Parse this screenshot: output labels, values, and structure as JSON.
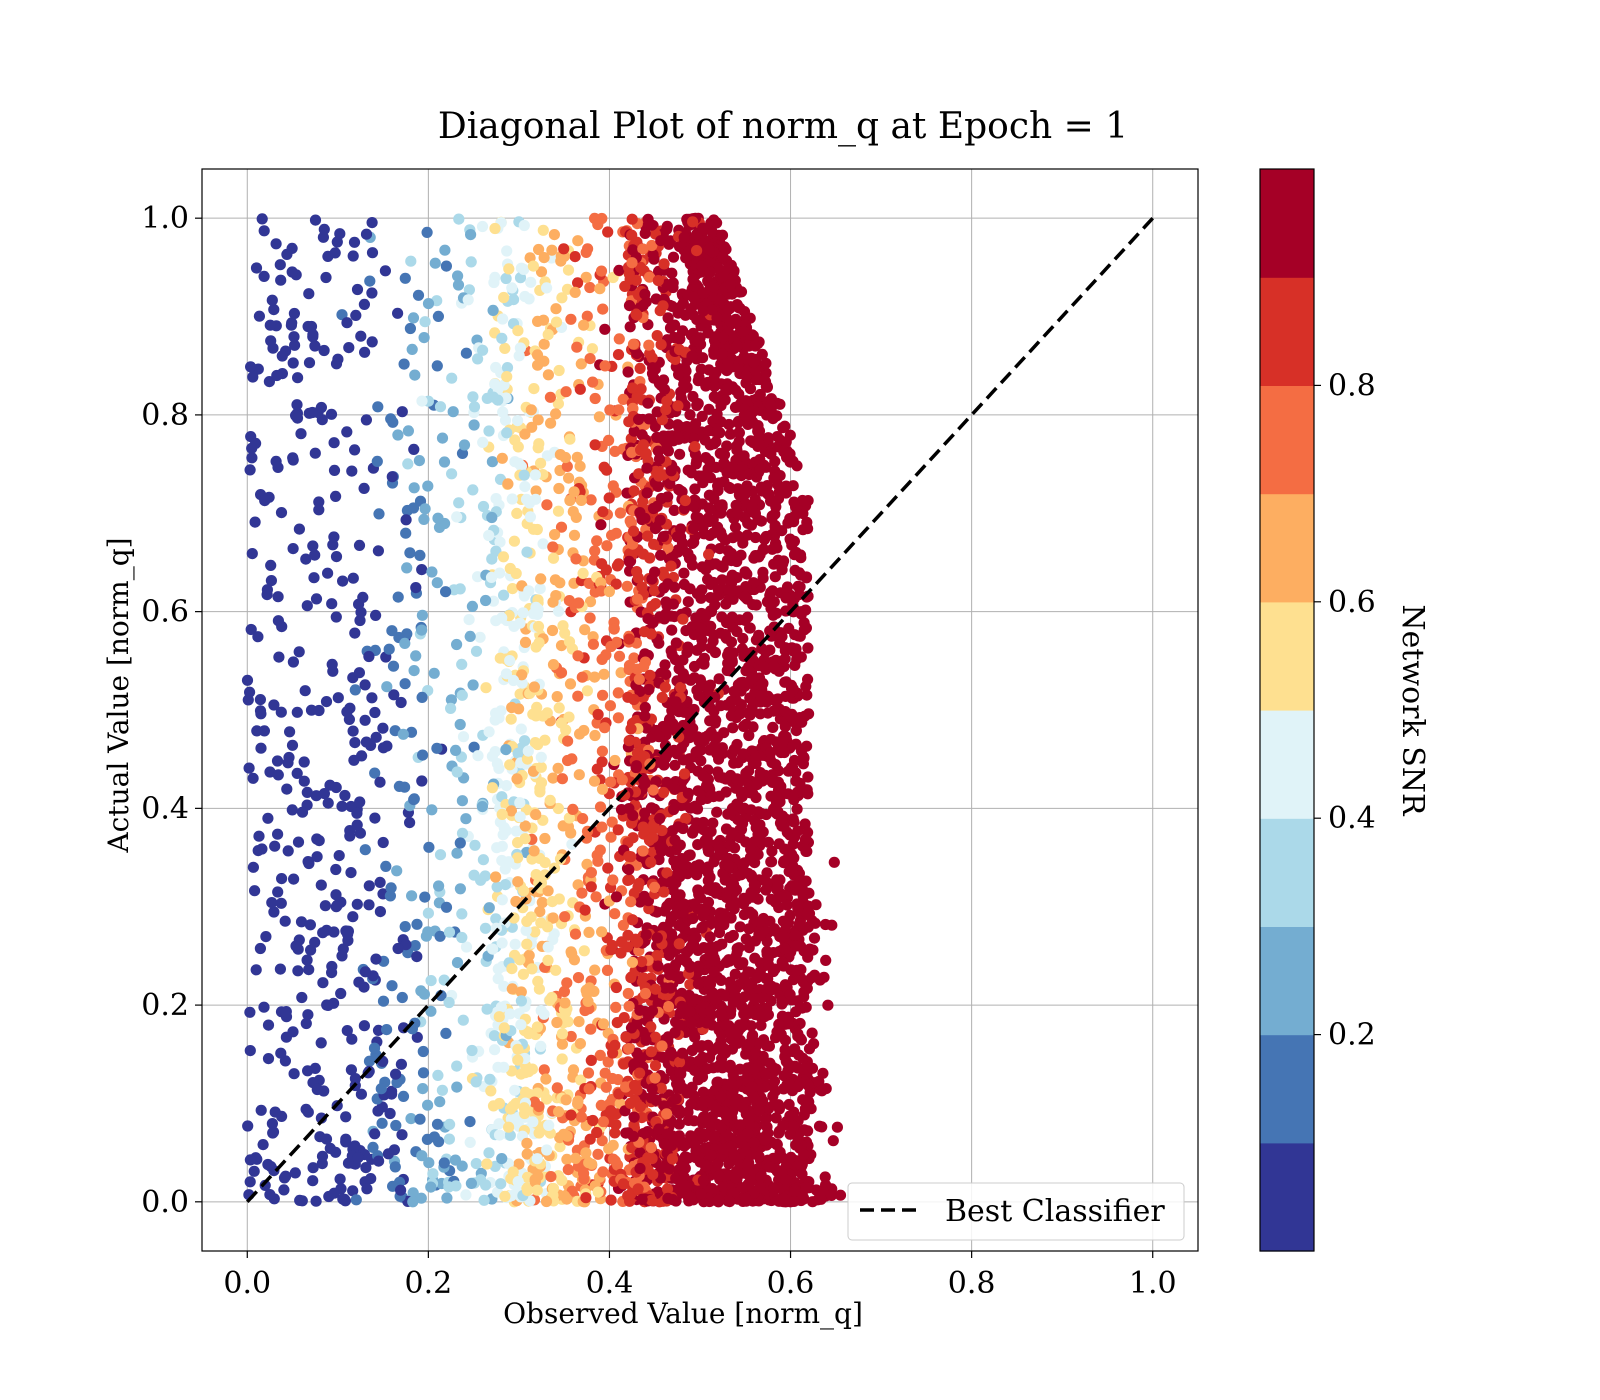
{
  "chart_data": {
    "type": "scatter",
    "title": "Diagonal Plot of norm_q at Epoch = 1",
    "xlabel": "Observed Value [norm_q]",
    "ylabel": "Actual Value [norm_q]",
    "xlim": [
      -0.05,
      1.05
    ],
    "ylim": [
      -0.05,
      1.05
    ],
    "x_ticks": [
      "0.0",
      "0.2",
      "0.4",
      "0.6",
      "0.8",
      "1.0"
    ],
    "y_ticks": [
      "0.0",
      "0.2",
      "0.4",
      "0.6",
      "0.8",
      "1.0"
    ],
    "grid": true,
    "legend": {
      "position": "lower-right",
      "entries": [
        "Best Classifier"
      ]
    },
    "series": [
      {
        "name": "Best Classifier",
        "type": "line",
        "style": "dashed",
        "color": "#000000",
        "x": [
          0.0,
          1.0
        ],
        "y": [
          0.0,
          1.0
        ]
      }
    ],
    "scatter_summary": {
      "color_by": "Network SNR",
      "approx_points": 30000,
      "x_range_observed": [
        0.0,
        0.66
      ],
      "y_range_observed": [
        0.0,
        1.0
      ]
    },
    "colorbar": {
      "label": "Network SNR",
      "range": [
        0.0,
        1.0
      ],
      "ticks": [
        "0.2",
        "0.4",
        "0.6",
        "0.8"
      ],
      "tick_values": [
        0.2,
        0.4,
        0.6,
        0.8
      ],
      "bands": [
        "#313695",
        "#4575b4",
        "#74add1",
        "#abd9e9",
        "#e0f3f8",
        "#fee090",
        "#fdae61",
        "#f46d43",
        "#d73027",
        "#a50026"
      ]
    }
  }
}
